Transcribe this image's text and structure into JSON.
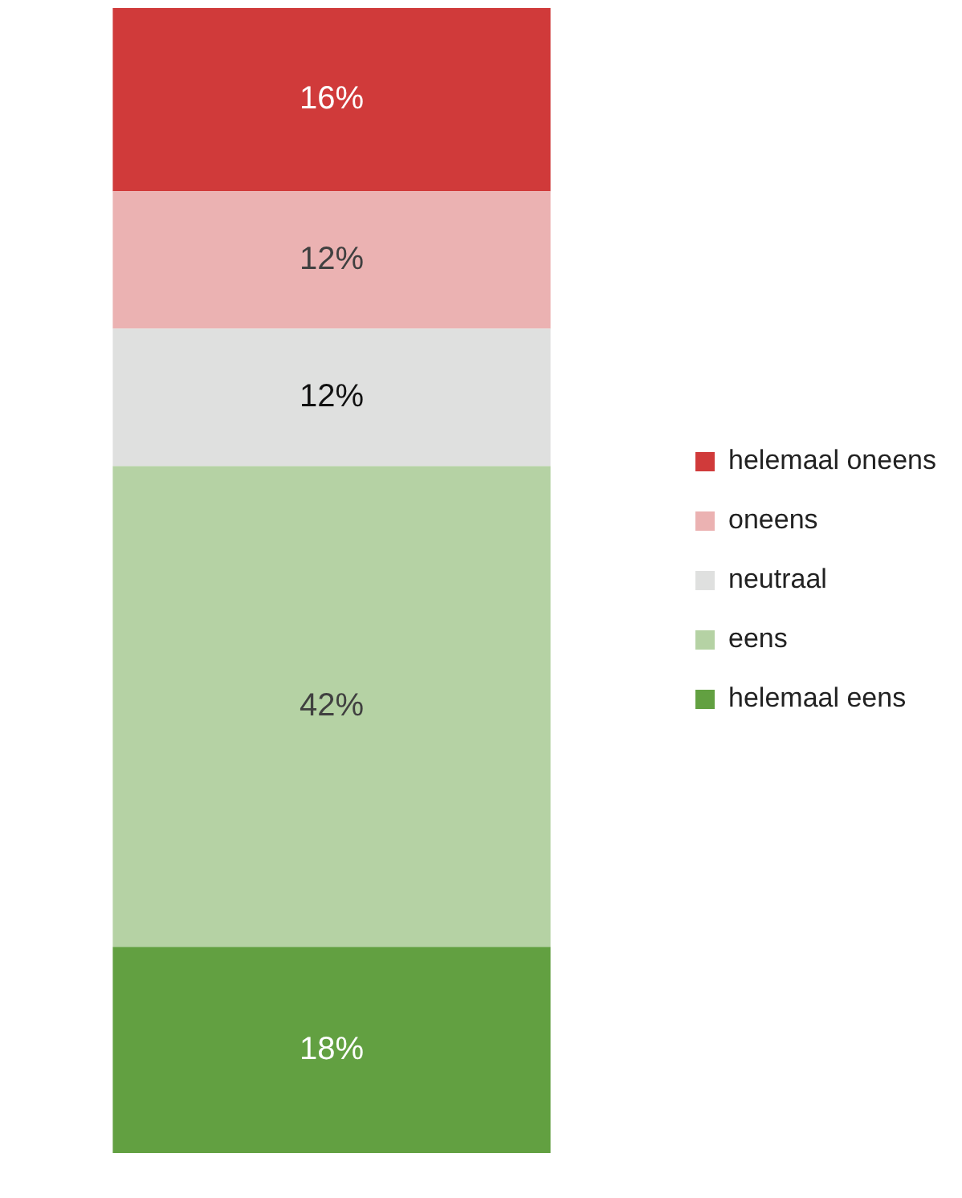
{
  "chart_data": {
    "type": "bar",
    "stacked": true,
    "categories": [
      null
    ],
    "tick_labels": false,
    "grid": false,
    "legend": "right",
    "series": [
      {
        "name": "helemaal eens",
        "color": "#62a041",
        "values": [
          18
        ],
        "value_labels": [
          "18%"
        ]
      },
      {
        "name": "eens",
        "color": "#b5d2a4",
        "values": [
          42
        ],
        "value_labels": [
          "42%"
        ]
      },
      {
        "name": "neutraal",
        "color": "#dfe0df",
        "values": [
          12
        ],
        "value_labels": [
          "12%"
        ]
      },
      {
        "name": "oneens",
        "color": "#ebb2b2",
        "values": [
          12
        ],
        "value_labels": [
          "12%"
        ]
      },
      {
        "name": "helemaal oneens",
        "color": "#d03a3a",
        "values": [
          16
        ],
        "value_labels": [
          "16%"
        ]
      }
    ]
  }
}
